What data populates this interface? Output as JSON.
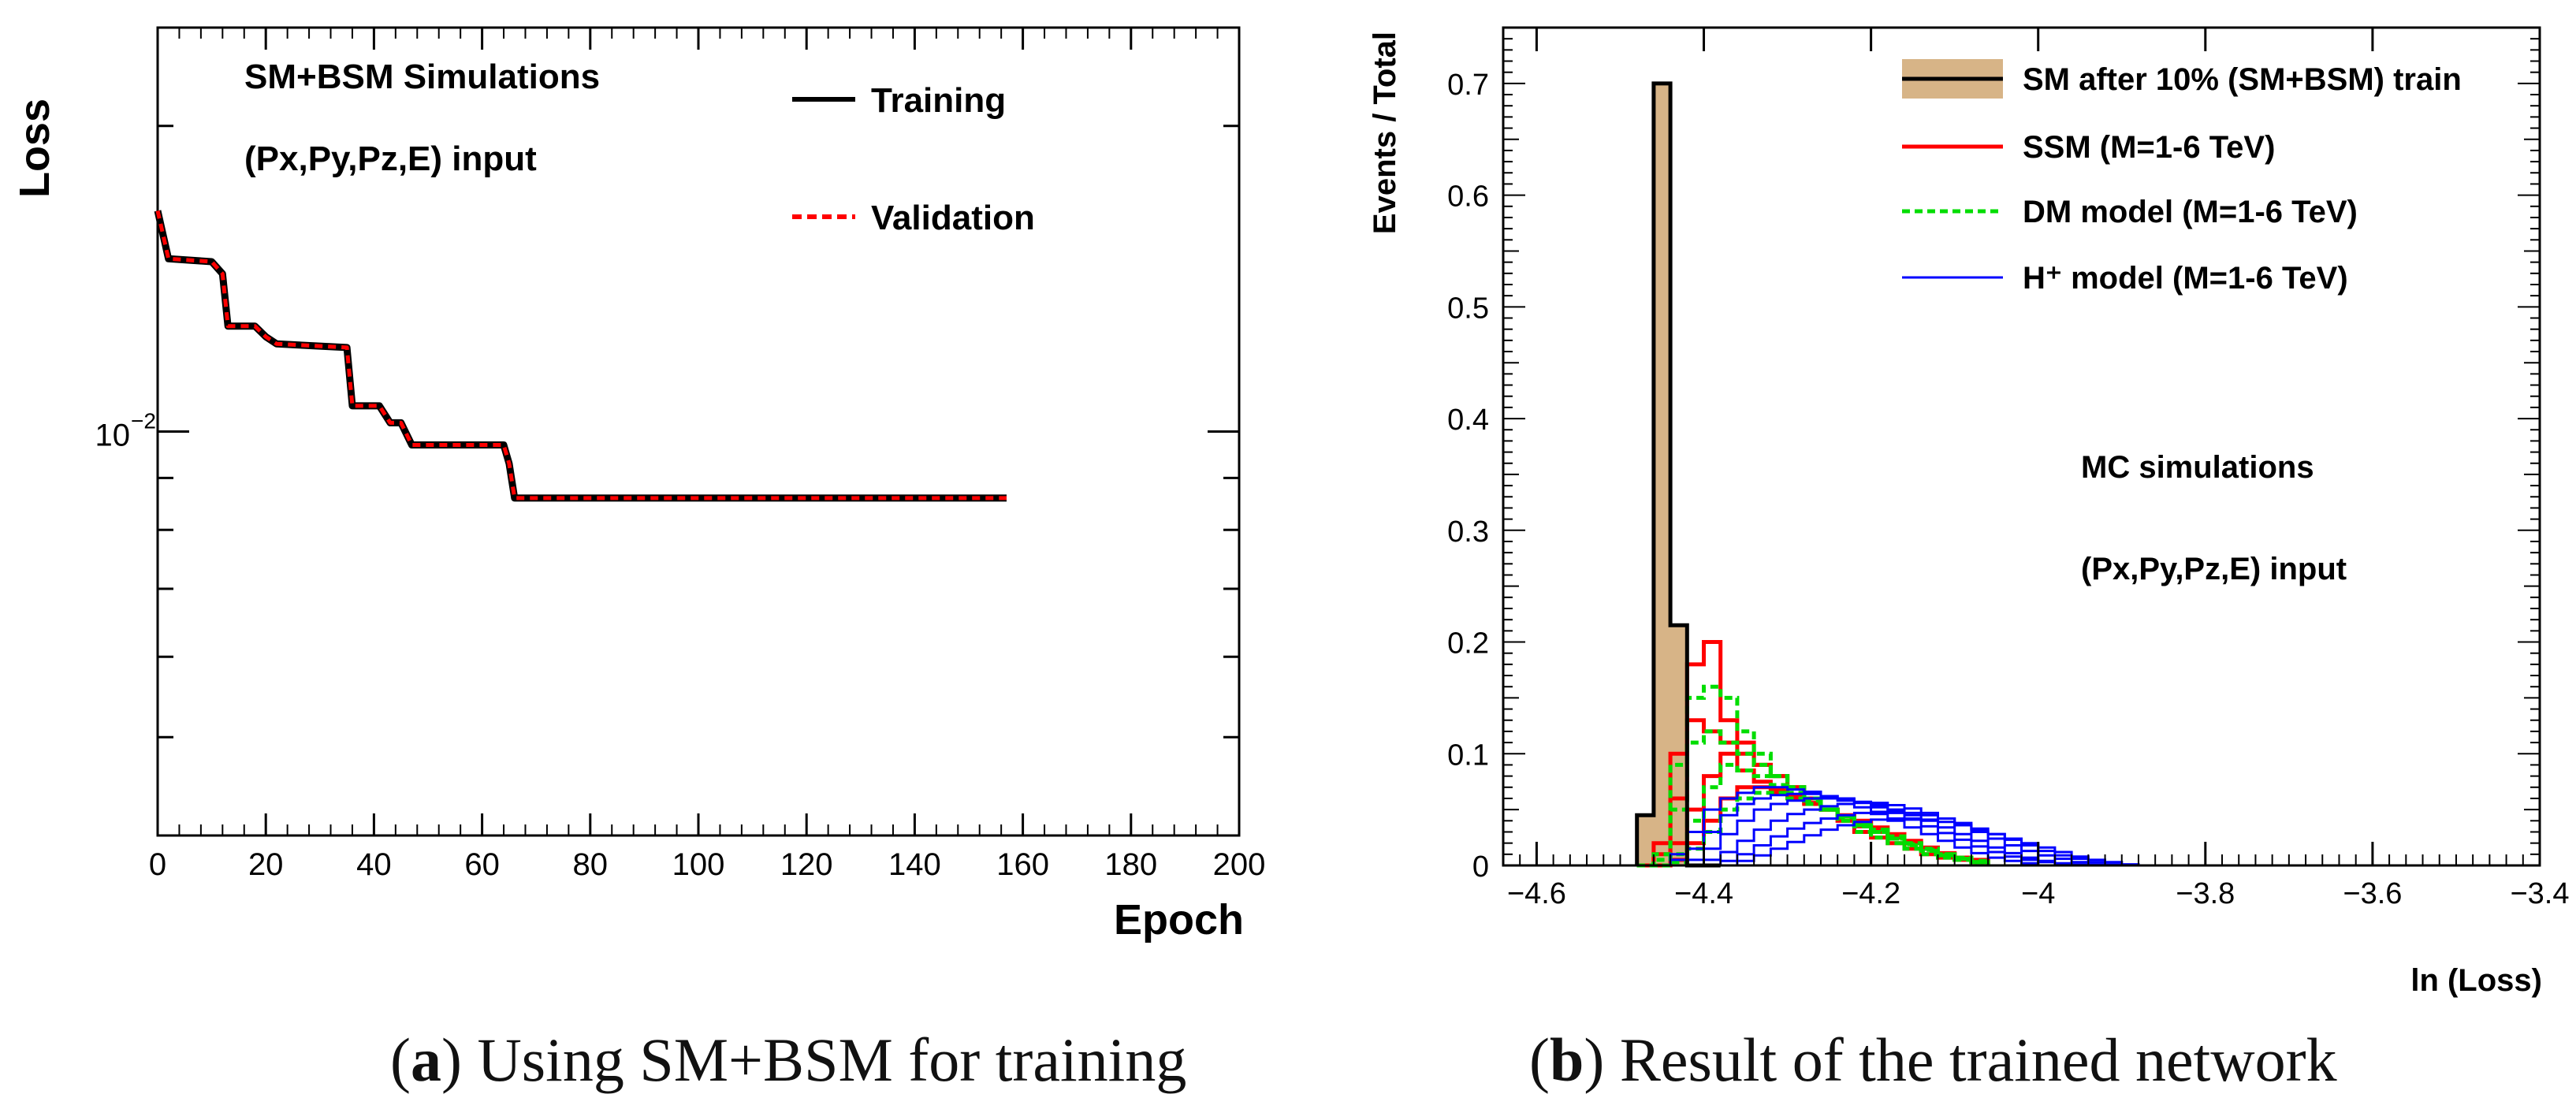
{
  "chart_data": [
    {
      "type": "line",
      "panel": "a",
      "xlabel": "Epoch",
      "ylabel": "Loss",
      "xlim": [
        0,
        200
      ],
      "ylim": [
        0.004,
        0.025
      ],
      "yscale": "log",
      "x_ticks": [
        "0",
        "20",
        "40",
        "60",
        "80",
        "100",
        "120",
        "140",
        "160",
        "180",
        "200"
      ],
      "y_tick_label": "10",
      "y_tick_exponent": "−2",
      "annotations": [
        "SM+BSM Simulations",
        "(Px,Py,Pz,E) input"
      ],
      "legend_position": "top-right",
      "series": [
        {
          "name": "Training",
          "color": "#000000",
          "style": "solid",
          "x": [
            0,
            2,
            10,
            12,
            13,
            18,
            20,
            22,
            35,
            36,
            41,
            43,
            45,
            47,
            64,
            65,
            66,
            157
          ],
          "y": [
            0.0165,
            0.0148,
            0.0147,
            0.0143,
            0.0127,
            0.0127,
            0.0124,
            0.0122,
            0.0121,
            0.0106,
            0.0106,
            0.0102,
            0.0102,
            0.0097,
            0.0097,
            0.0093,
            0.0086,
            0.0086
          ]
        },
        {
          "name": "Validation",
          "color": "#ff0000",
          "style": "dashed",
          "x": [
            0,
            2,
            10,
            12,
            13,
            18,
            20,
            22,
            35,
            36,
            41,
            43,
            45,
            47,
            64,
            65,
            66,
            157
          ],
          "y": [
            0.0165,
            0.0148,
            0.0147,
            0.0143,
            0.0127,
            0.0127,
            0.0124,
            0.0122,
            0.0121,
            0.0106,
            0.0106,
            0.0102,
            0.0102,
            0.0097,
            0.0097,
            0.0093,
            0.0086,
            0.0086
          ]
        }
      ]
    },
    {
      "type": "histogram",
      "panel": "b",
      "xlabel": "ln (Loss)",
      "ylabel": "Events / Total",
      "xlim": [
        -4.64,
        -3.4
      ],
      "ylim": [
        0,
        0.75
      ],
      "x_ticks": [
        "−4.6",
        "−4.4",
        "−4.2",
        "−4",
        "−3.8",
        "−3.6",
        "−3.4"
      ],
      "y_ticks": [
        "0",
        "0.1",
        "0.2",
        "0.3",
        "0.4",
        "0.5",
        "0.6",
        "0.7"
      ],
      "annotations": [
        "MC simulations",
        "(Px,Py,Pz,E) input"
      ],
      "legend_position": "top-right",
      "bin_edges_start": -4.48,
      "bin_width": 0.02,
      "sm": {
        "name": "SM after 10% (SM+BSM) train",
        "fill": "#d7b487",
        "values": [
          0.045,
          0.7,
          0.215,
          0.0,
          0.0
        ]
      },
      "series": [
        {
          "name": "SSM  (M=1-6 TeV)",
          "color": "#ff0000",
          "style": "solid",
          "hists": [
            [
              0.0,
              0.02,
              0.1,
              0.18,
              0.2,
              0.13,
              0.11,
              0.09,
              0.08,
              0.07,
              0.06,
              0.05,
              0.04,
              0.03,
              0.025,
              0.02,
              0.015,
              0.01,
              0.007,
              0.005,
              0.003
            ],
            [
              0.0,
              0.01,
              0.06,
              0.13,
              0.12,
              0.11,
              0.1,
              0.09,
              0.08,
              0.07,
              0.06,
              0.05,
              0.04,
              0.035,
              0.03,
              0.025,
              0.02,
              0.015,
              0.01,
              0.007,
              0.005
            ],
            [
              0.0,
              0.0,
              0.02,
              0.05,
              0.08,
              0.1,
              0.085,
              0.075,
              0.068,
              0.062,
              0.056,
              0.05,
              0.044,
              0.038,
              0.032,
              0.026,
              0.02,
              0.015,
              0.01,
              0.007,
              0.004
            ],
            [
              0.0,
              0.0,
              0.005,
              0.02,
              0.04,
              0.06,
              0.07,
              0.07,
              0.065,
              0.06,
              0.055,
              0.05,
              0.045,
              0.04,
              0.034,
              0.028,
              0.022,
              0.016,
              0.011,
              0.007,
              0.004
            ]
          ]
        },
        {
          "name": "DM model (M=1-6 TeV)",
          "color": "#00dd00",
          "style": "dashed",
          "hists": [
            [
              0.0,
              0.01,
              0.09,
              0.15,
              0.16,
              0.15,
              0.12,
              0.1,
              0.08,
              0.07,
              0.06,
              0.05,
              0.04,
              0.03,
              0.025,
              0.02,
              0.015,
              0.01,
              0.007,
              0.005,
              0.003
            ],
            [
              0.0,
              0.005,
              0.05,
              0.11,
              0.12,
              0.11,
              0.1,
              0.09,
              0.08,
              0.07,
              0.06,
              0.05,
              0.04,
              0.035,
              0.03,
              0.024,
              0.019,
              0.014,
              0.01,
              0.007,
              0.004
            ],
            [
              0.0,
              0.0,
              0.01,
              0.04,
              0.07,
              0.09,
              0.085,
              0.08,
              0.072,
              0.065,
              0.058,
              0.05,
              0.043,
              0.036,
              0.03,
              0.024,
              0.018,
              0.013,
              0.009,
              0.006,
              0.003
            ],
            [
              0.0,
              0.0,
              0.003,
              0.015,
              0.03,
              0.05,
              0.06,
              0.065,
              0.065,
              0.06,
              0.055,
              0.05,
              0.044,
              0.038,
              0.032,
              0.026,
              0.02,
              0.015,
              0.01,
              0.006,
              0.003
            ]
          ]
        },
        {
          "name": "H⁺ model (M=1-6 TeV)",
          "color": "#0000ff",
          "style": "solid",
          "hists": [
            [
              0.0,
              0.0,
              0.01,
              0.03,
              0.05,
              0.06,
              0.065,
              0.07,
              0.07,
              0.068,
              0.066,
              0.062,
              0.058,
              0.052,
              0.046,
              0.04,
              0.034,
              0.028,
              0.022,
              0.016,
              0.011,
              0.007,
              0.004,
              0.002
            ],
            [
              0.0,
              0.0,
              0.005,
              0.015,
              0.03,
              0.045,
              0.055,
              0.06,
              0.063,
              0.064,
              0.064,
              0.062,
              0.06,
              0.056,
              0.052,
              0.047,
              0.041,
              0.035,
              0.029,
              0.023,
              0.017,
              0.012,
              0.008,
              0.005,
              0.003,
              0.001
            ],
            [
              0.0,
              0.0,
              0.0,
              0.005,
              0.015,
              0.028,
              0.04,
              0.05,
              0.055,
              0.058,
              0.06,
              0.06,
              0.059,
              0.057,
              0.054,
              0.05,
              0.045,
              0.04,
              0.034,
              0.028,
              0.022,
              0.016,
              0.011,
              0.007,
              0.004,
              0.002,
              0.001
            ],
            [
              0.0,
              0.0,
              0.0,
              0.0,
              0.005,
              0.012,
              0.022,
              0.032,
              0.04,
              0.046,
              0.05,
              0.053,
              0.055,
              0.056,
              0.056,
              0.054,
              0.051,
              0.047,
              0.042,
              0.036,
              0.03,
              0.024,
              0.018,
              0.013,
              0.009,
              0.006,
              0.003,
              0.001
            ],
            [
              0.0,
              0.0,
              0.0,
              0.0,
              0.0,
              0.004,
              0.01,
              0.018,
              0.026,
              0.033,
              0.038,
              0.042,
              0.045,
              0.047,
              0.048,
              0.048,
              0.047,
              0.045,
              0.042,
              0.038,
              0.033,
              0.028,
              0.023,
              0.018,
              0.013,
              0.009,
              0.006,
              0.003,
              0.001
            ],
            [
              0.0,
              0.0,
              0.0,
              0.0,
              0.0,
              0.0,
              0.004,
              0.009,
              0.015,
              0.021,
              0.027,
              0.032,
              0.036,
              0.039,
              0.041,
              0.042,
              0.042,
              0.041,
              0.039,
              0.036,
              0.032,
              0.028,
              0.024,
              0.02,
              0.016,
              0.012,
              0.008,
              0.005,
              0.003,
              0.001
            ]
          ]
        }
      ]
    }
  ],
  "captions": {
    "a_letter": "a",
    "a_text": ") Using SM+BSM for training",
    "b_letter": "b",
    "b_text": ") Result of the trained network"
  }
}
